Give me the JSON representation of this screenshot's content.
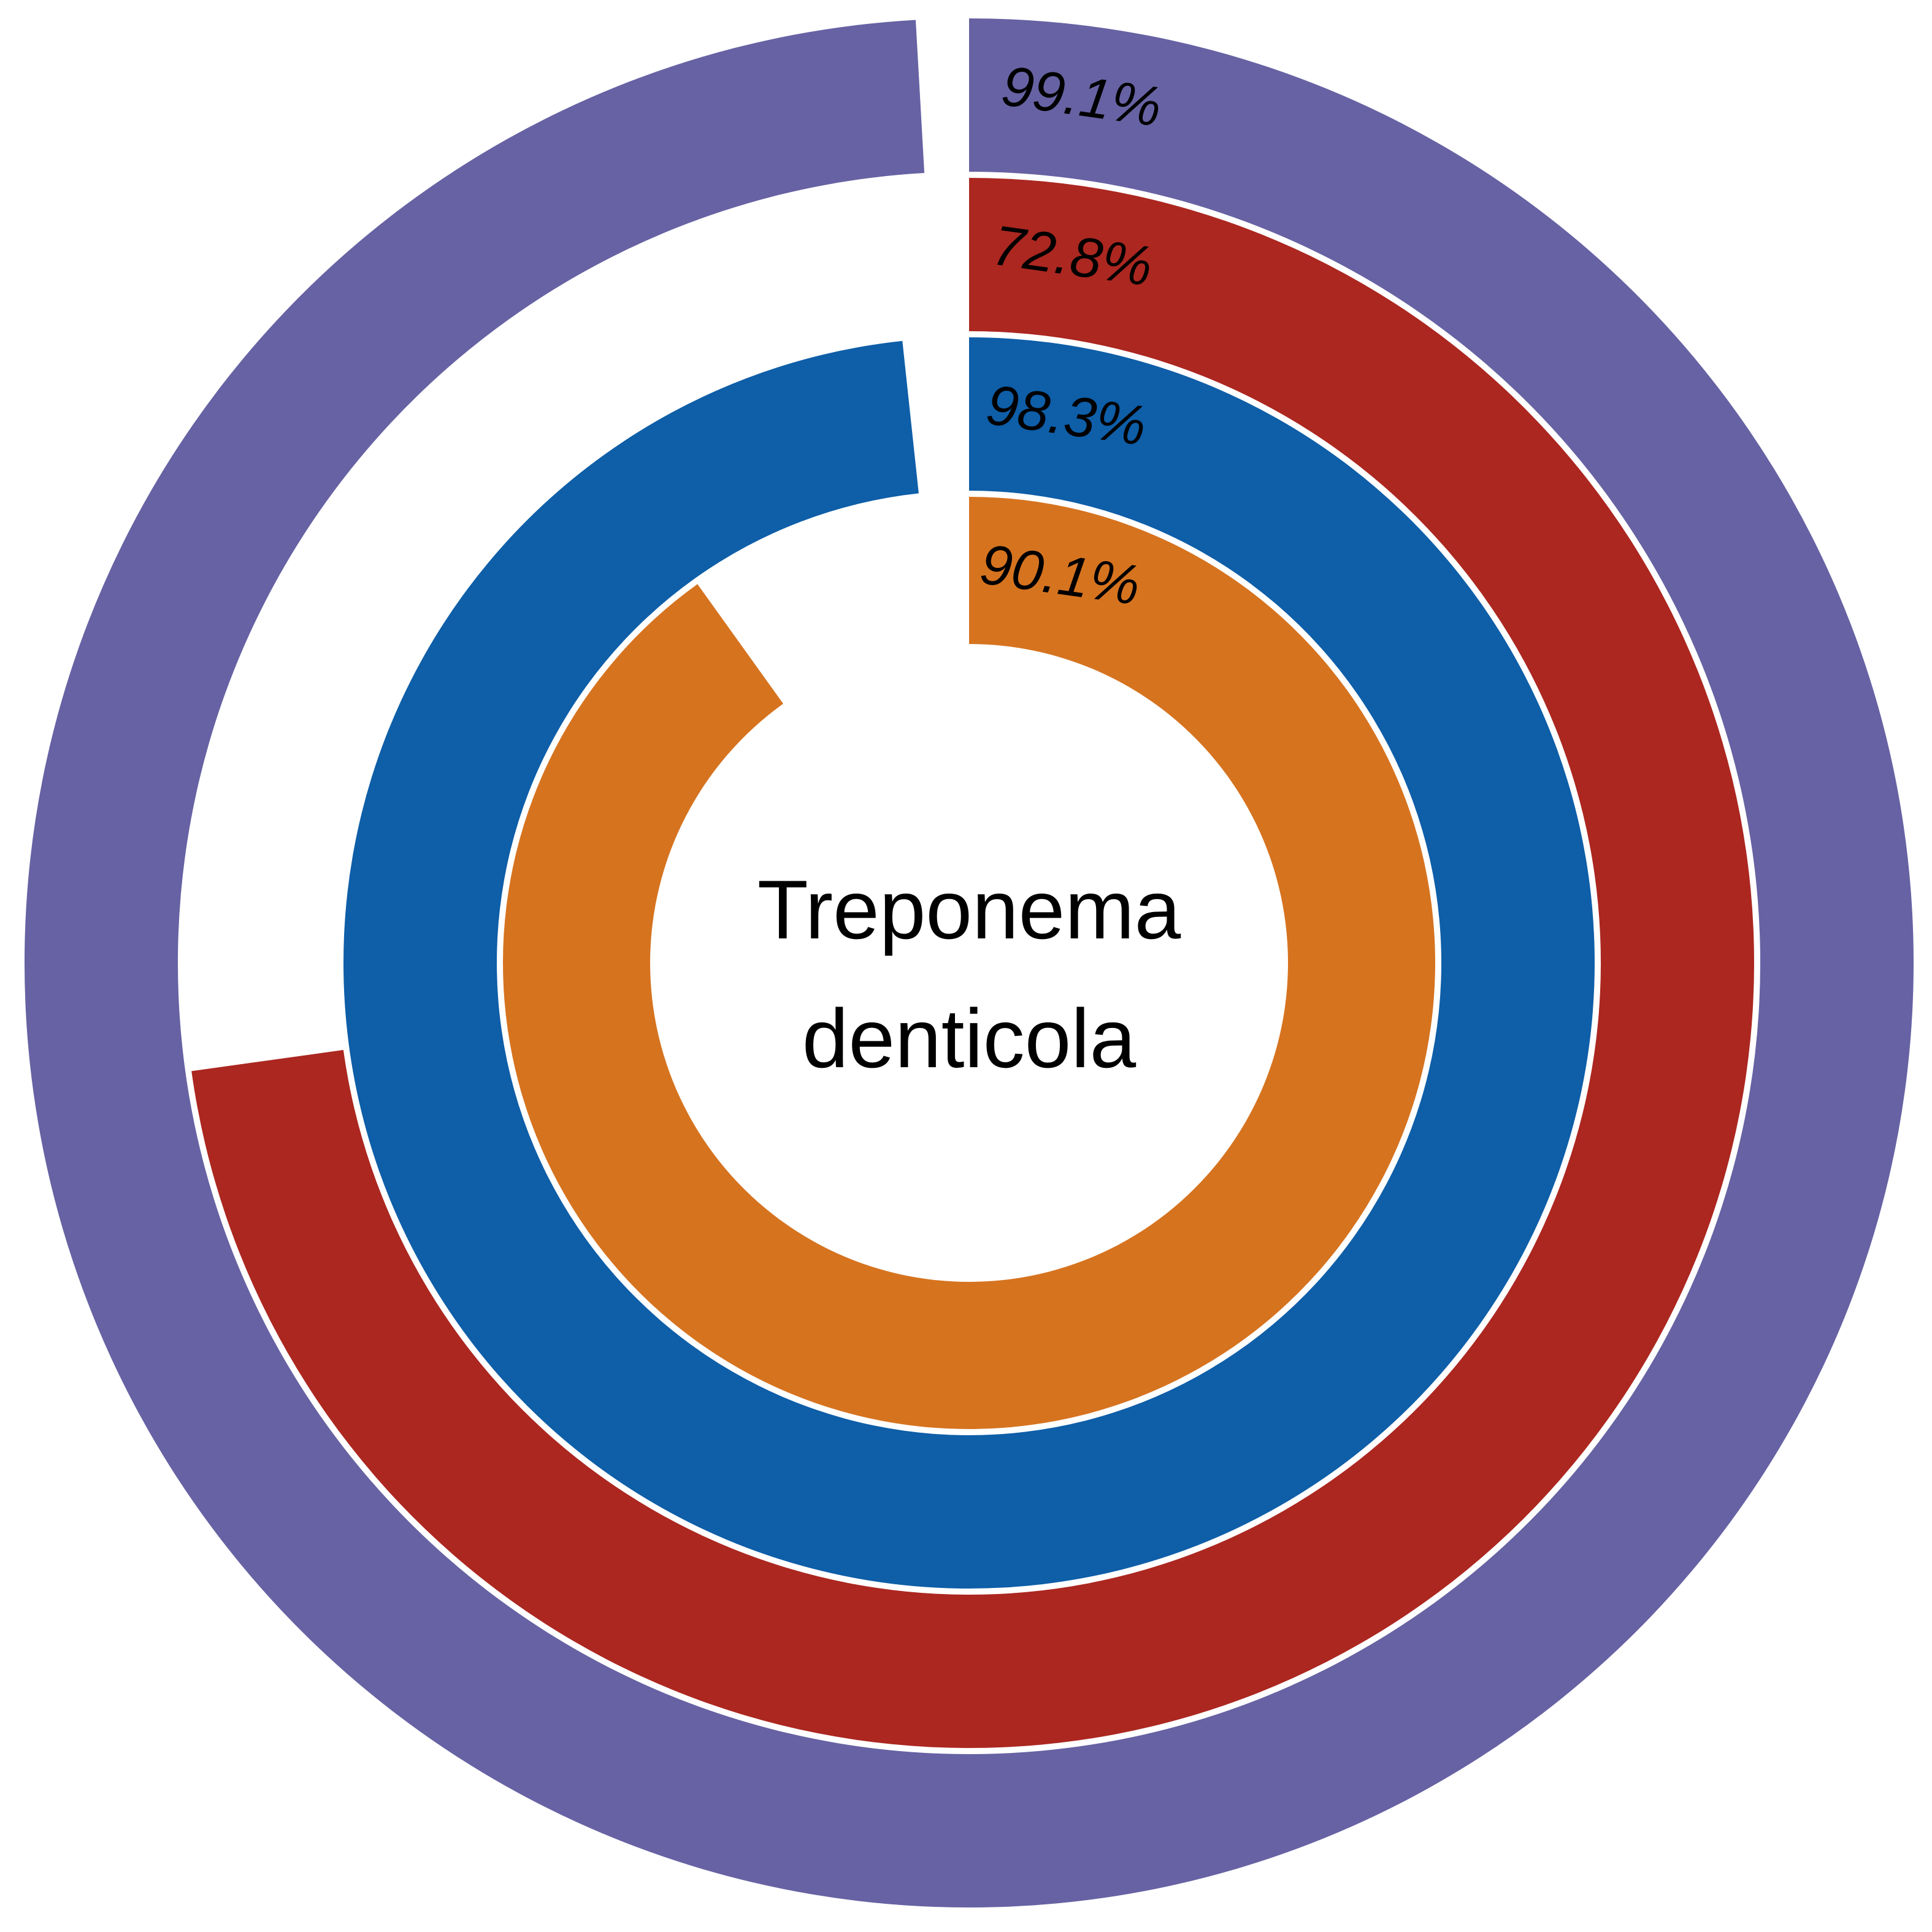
{
  "chart_data": {
    "type": "radial-bar",
    "center_label_lines": [
      "Treponema",
      "denticola"
    ],
    "rings": [
      {
        "value": 99.1,
        "label": "99.1%",
        "color": "#6662a3"
      },
      {
        "value": 72.8,
        "label": "72.8%",
        "color": "#ab2720"
      },
      {
        "value": 98.3,
        "label": "98.3%",
        "color": "#0e5ea8"
      },
      {
        "value": 90.1,
        "label": "90.1%",
        "color": "#d6731f"
      }
    ]
  }
}
